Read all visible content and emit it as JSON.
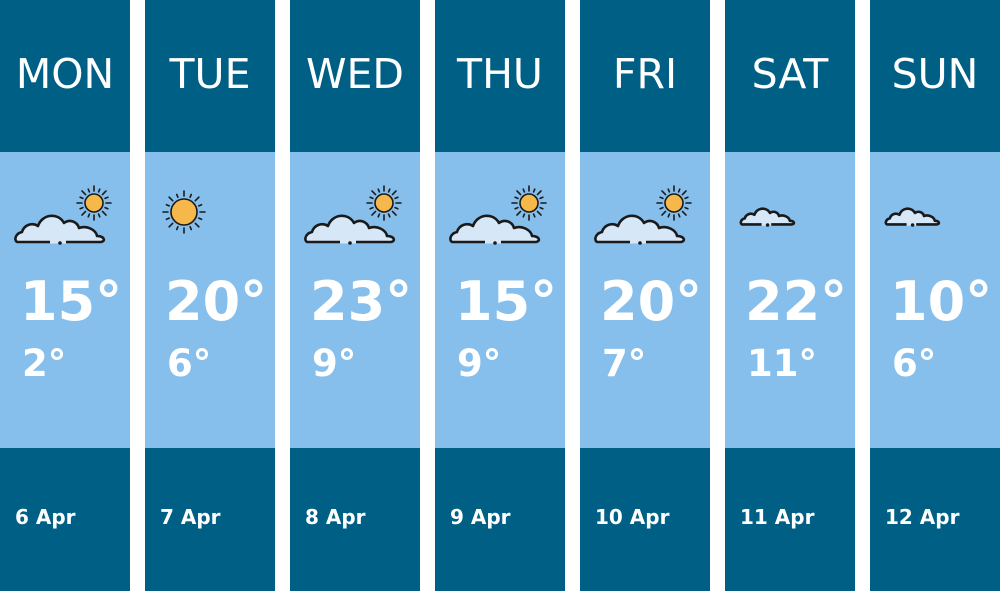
{
  "days": [
    {
      "day": "MON",
      "high": "15°",
      "low": "2°",
      "date": "6 Apr",
      "icon": "partly-cloudy-icon"
    },
    {
      "day": "TUE",
      "high": "20°",
      "low": "6°",
      "date": "7 Apr",
      "icon": "sun-icon"
    },
    {
      "day": "WED",
      "high": "23°",
      "low": "9°",
      "date": "8 Apr",
      "icon": "partly-cloudy-icon"
    },
    {
      "day": "THU",
      "high": "15°",
      "low": "9°",
      "date": "9 Apr",
      "icon": "partly-cloudy-icon"
    },
    {
      "day": "FRI",
      "high": "20°",
      "low": "7°",
      "date": "10 Apr",
      "icon": "partly-cloudy-icon"
    },
    {
      "day": "SAT",
      "high": "22°",
      "low": "11°",
      "date": "11 Apr",
      "icon": "cloud-icon"
    },
    {
      "day": "SUN",
      "high": "10°",
      "low": "6°",
      "date": "12 Apr",
      "icon": "cloud-icon"
    }
  ],
  "colors": {
    "header": "#005f84",
    "body": "#86bfec",
    "sun": "#f6b84b",
    "cloud": "#d6e8f7"
  }
}
